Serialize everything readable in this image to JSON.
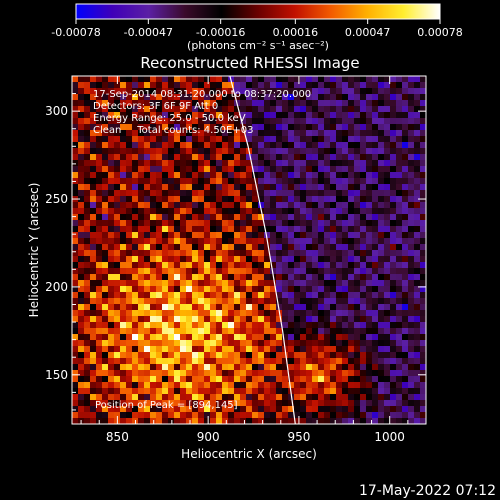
{
  "colorbar": {
    "tick_labels": [
      "-0.00078",
      "-0.00047",
      "-0.00016",
      "0.00016",
      "0.00047",
      "0.00078"
    ],
    "tick_values": [
      -0.00078,
      -0.00047,
      -0.00016,
      0.00016,
      0.00047,
      0.00078
    ],
    "range": [
      -0.00078,
      0.00078
    ],
    "units": "(photons cm⁻² s⁻¹ asec⁻²)",
    "colormap": [
      "#0000ff",
      "#3f00b8",
      "#5b1fa4",
      "#3a0a2a",
      "#000000",
      "#6a0000",
      "#c01000",
      "#f25a00",
      "#ffb000",
      "#ffee30",
      "#ffffff"
    ]
  },
  "chart_data": {
    "type": "heatmap",
    "title": "Reconstructed RHESSI Image",
    "xlabel": "Heliocentric X (arcsec)",
    "ylabel": "Heliocentric Y (arcsec)",
    "xlim": [
      825,
      1020
    ],
    "ylim": [
      122,
      320
    ],
    "x_ticks": [
      850,
      900,
      950,
      1000
    ],
    "y_ticks": [
      150,
      200,
      250,
      300
    ],
    "x_tick_labels": [
      "850",
      "900",
      "950",
      "1000"
    ],
    "y_tick_labels": [
      "150",
      "200",
      "250",
      "300"
    ],
    "limb_curve": {
      "x": [
        912,
        922,
        932,
        941,
        948
      ],
      "y": [
        320,
        280,
        230,
        175,
        122
      ]
    },
    "peak_position": [
      894,
      145
    ],
    "annotations": [
      "17-Sep-2014 08:31:20.000 to 08:37:20.000",
      "Detectors: 3F 6F 9F Att 0",
      "Energy Range: 25.0 - 50.0 keV",
      "Clean     Total counts: 4.50E+03"
    ],
    "peak_label": "Position of Peak = [894,145]"
  },
  "footer": {
    "date": "17-May-2022 07:12"
  }
}
